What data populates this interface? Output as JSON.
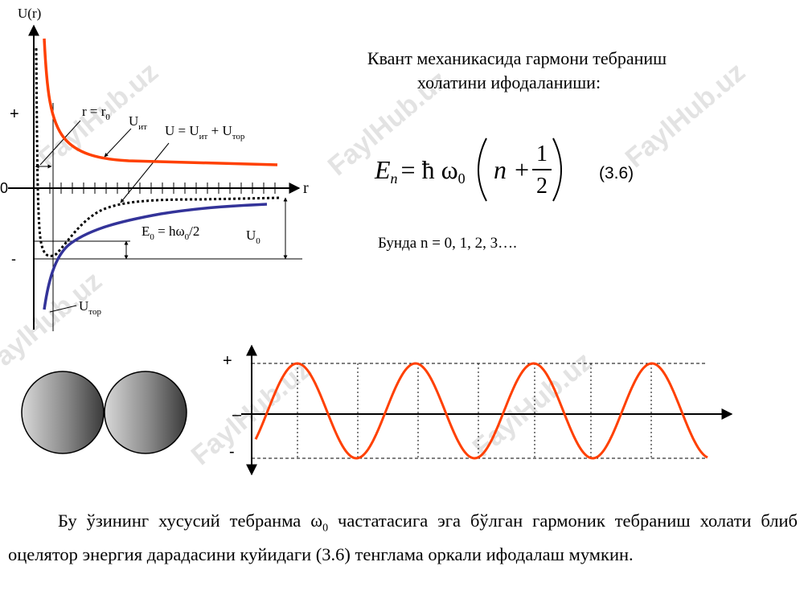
{
  "watermark": "FaylHub.uz",
  "diagram": {
    "y_axis_label": "U(r)",
    "plus": "+",
    "zero": "0",
    "minus": "-",
    "x_axis_label": "r",
    "r0_label": [
      "r = r",
      "0"
    ],
    "u_it_label": [
      "U",
      "ит"
    ],
    "u_sum_label": [
      "U = U",
      "ит",
      " + U",
      "тор"
    ],
    "e0_label": [
      "E",
      "0",
      " = hω",
      "0",
      "/2"
    ],
    "u0_label": [
      "U",
      "0"
    ],
    "u_tor_label": [
      "U",
      "тор"
    ]
  },
  "heading": [
    "Квант механикасида гармони тебраниш",
    "холатини ифодаланиши:"
  ],
  "formula": {
    "parts": [
      "E",
      "n",
      "= ħ ω",
      "0",
      "n +",
      "1",
      "2"
    ],
    "number": "(3.6)"
  },
  "note": "Бунда n = 0, 1, 2, 3….",
  "wave": {
    "plus": "+",
    "zero_mark": "–",
    "minus": "-"
  },
  "paragraph": [
    "Бу ўзининг хусусий тебранма ω",
    "0",
    " частатасига эга бўлган гармоник тебраниш холати блиб оцелятор энергия дарадасини куйидаги (3.6) тенглама оркали ифодалаш мумкин."
  ]
}
